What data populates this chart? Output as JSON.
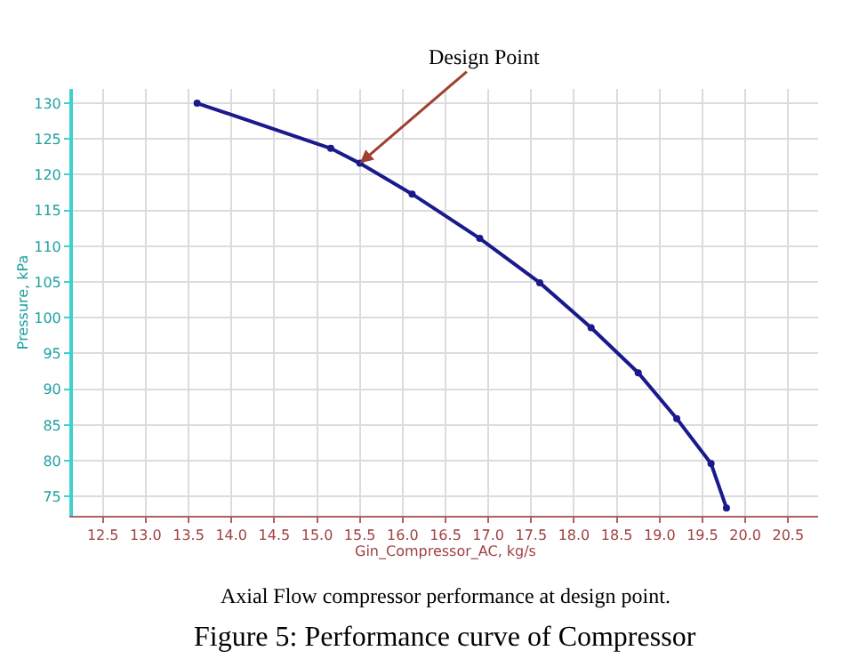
{
  "chart_data": {
    "type": "line",
    "xlabel": "Gin_Compressor_AC, kg/s",
    "ylabel": "Pressure, kPa",
    "x": [
      13.6,
      15.16,
      15.5,
      16.11,
      16.9,
      17.6,
      18.2,
      18.75,
      19.2,
      19.6,
      19.78
    ],
    "series": [
      {
        "color": "#1a1a8c",
        "values": [
          130,
          123.7,
          121.6,
          117.3,
          111.1,
          104.9,
          98.6,
          92.3,
          85.9,
          79.6,
          73.4
        ]
      }
    ],
    "xlim": [
      12.15,
      20.85
    ],
    "ylim": [
      72.3,
      132
    ],
    "xticks": [
      {
        "value": 12.5,
        "label": "12.5"
      },
      {
        "value": 13.0,
        "label": "13.0"
      },
      {
        "value": 13.5,
        "label": "13.5"
      },
      {
        "value": 14.0,
        "label": "14.0"
      },
      {
        "value": 14.5,
        "label": "14.5"
      },
      {
        "value": 15.0,
        "label": "15.0"
      },
      {
        "value": 15.5,
        "label": "15.5"
      },
      {
        "value": 16.0,
        "label": "16.0"
      },
      {
        "value": 16.5,
        "label": "16.5"
      },
      {
        "value": 17.0,
        "label": "17.0"
      },
      {
        "value": 17.5,
        "label": "17.5"
      },
      {
        "value": 18.0,
        "label": "18.0"
      },
      {
        "value": 18.5,
        "label": "18.5"
      },
      {
        "value": 19.0,
        "label": "19.0"
      },
      {
        "value": 19.5,
        "label": "19.5"
      },
      {
        "value": 20.0,
        "label": "20.0"
      },
      {
        "value": 20.5,
        "label": "20.5"
      }
    ],
    "yticks": [
      75,
      80,
      85,
      90,
      95,
      100,
      105,
      110,
      115,
      120,
      125,
      130
    ],
    "grid": true,
    "marker": "circle",
    "line_style": "solid",
    "annotations": [
      {
        "text": "Design Point",
        "x": 15.5,
        "y": 121.6
      },
      "Axial Flow compressor performance at design point.",
      "Figure 5: Performance curve of Compressor"
    ]
  }
}
